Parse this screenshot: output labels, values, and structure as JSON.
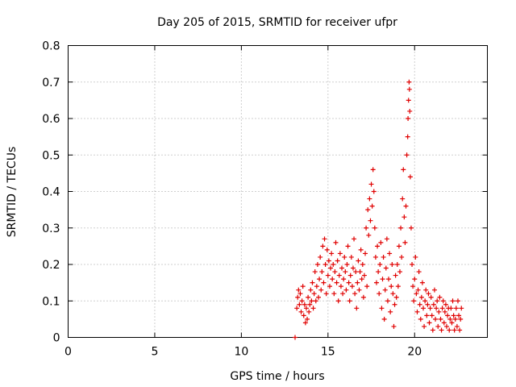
{
  "chart_data": {
    "type": "scatter",
    "title": "Day 205 of 2015, SRMTID for receiver ufpr",
    "xlabel": "GPS time / hours",
    "ylabel": "SRMTID / TECUs",
    "xlim": [
      0,
      24.2
    ],
    "ylim": [
      0,
      0.8
    ],
    "x_ticks": [
      0,
      5,
      10,
      15,
      20
    ],
    "y_ticks": [
      0,
      0.1,
      0.2,
      0.3,
      0.4,
      0.5,
      0.6,
      0.7,
      0.8
    ],
    "grid": true,
    "marker": "+",
    "color": "#e00000",
    "series": [
      {
        "name": "SRMTID",
        "points": [
          [
            13.1,
            0.0
          ],
          [
            13.2,
            0.08
          ],
          [
            13.25,
            0.11
          ],
          [
            13.3,
            0.13
          ],
          [
            13.35,
            0.09
          ],
          [
            13.4,
            0.12
          ],
          [
            13.45,
            0.07
          ],
          [
            13.5,
            0.1
          ],
          [
            13.55,
            0.14
          ],
          [
            13.6,
            0.06
          ],
          [
            13.65,
            0.09
          ],
          [
            13.7,
            0.04
          ],
          [
            13.75,
            0.08
          ],
          [
            13.8,
            0.05
          ],
          [
            13.85,
            0.11
          ],
          [
            13.9,
            0.07
          ],
          [
            13.95,
            0.09
          ],
          [
            14.0,
            0.13
          ],
          [
            14.05,
            0.1
          ],
          [
            14.1,
            0.15
          ],
          [
            14.15,
            0.08
          ],
          [
            14.2,
            0.12
          ],
          [
            14.25,
            0.18
          ],
          [
            14.3,
            0.1
          ],
          [
            14.35,
            0.14
          ],
          [
            14.4,
            0.2
          ],
          [
            14.45,
            0.11
          ],
          [
            14.5,
            0.16
          ],
          [
            14.55,
            0.22
          ],
          [
            14.6,
            0.13
          ],
          [
            14.65,
            0.18
          ],
          [
            14.7,
            0.25
          ],
          [
            14.75,
            0.15
          ],
          [
            14.8,
            0.27
          ],
          [
            14.85,
            0.2
          ],
          [
            14.9,
            0.12
          ],
          [
            14.95,
            0.24
          ],
          [
            15.0,
            0.17
          ],
          [
            15.05,
            0.21
          ],
          [
            15.1,
            0.14
          ],
          [
            15.15,
            0.19
          ],
          [
            15.2,
            0.23
          ],
          [
            15.25,
            0.16
          ],
          [
            15.3,
            0.2
          ],
          [
            15.35,
            0.12
          ],
          [
            15.4,
            0.18
          ],
          [
            15.45,
            0.26
          ],
          [
            15.5,
            0.15
          ],
          [
            15.55,
            0.21
          ],
          [
            15.6,
            0.1
          ],
          [
            15.65,
            0.17
          ],
          [
            15.7,
            0.23
          ],
          [
            15.75,
            0.14
          ],
          [
            15.8,
            0.19
          ],
          [
            15.85,
            0.12
          ],
          [
            15.9,
            0.16
          ],
          [
            15.95,
            0.22
          ],
          [
            16.0,
            0.18
          ],
          [
            16.05,
            0.13
          ],
          [
            16.1,
            0.2
          ],
          [
            16.15,
            0.25
          ],
          [
            16.2,
            0.15
          ],
          [
            16.25,
            0.1
          ],
          [
            16.3,
            0.17
          ],
          [
            16.35,
            0.22
          ],
          [
            16.4,
            0.14
          ],
          [
            16.45,
            0.19
          ],
          [
            16.5,
            0.27
          ],
          [
            16.55,
            0.12
          ],
          [
            16.6,
            0.18
          ],
          [
            16.65,
            0.08
          ],
          [
            16.7,
            0.15
          ],
          [
            16.75,
            0.21
          ],
          [
            16.8,
            0.13
          ],
          [
            16.85,
            0.18
          ],
          [
            16.9,
            0.24
          ],
          [
            16.95,
            0.16
          ],
          [
            17.0,
            0.2
          ],
          [
            17.05,
            0.11
          ],
          [
            17.1,
            0.17
          ],
          [
            17.15,
            0.23
          ],
          [
            17.2,
            0.3
          ],
          [
            17.25,
            0.14
          ],
          [
            17.3,
            0.35
          ],
          [
            17.35,
            0.28
          ],
          [
            17.4,
            0.38
          ],
          [
            17.45,
            0.32
          ],
          [
            17.5,
            0.42
          ],
          [
            17.55,
            0.36
          ],
          [
            17.6,
            0.46
          ],
          [
            17.65,
            0.4
          ],
          [
            17.7,
            0.3
          ],
          [
            17.75,
            0.22
          ],
          [
            17.8,
            0.15
          ],
          [
            17.85,
            0.25
          ],
          [
            17.9,
            0.18
          ],
          [
            17.95,
            0.12
          ],
          [
            18.0,
            0.2
          ],
          [
            18.05,
            0.26
          ],
          [
            18.1,
            0.08
          ],
          [
            18.15,
            0.16
          ],
          [
            18.2,
            0.22
          ],
          [
            18.25,
            0.05
          ],
          [
            18.3,
            0.13
          ],
          [
            18.35,
            0.19
          ],
          [
            18.4,
            0.27
          ],
          [
            18.45,
            0.1
          ],
          [
            18.5,
            0.16
          ],
          [
            18.55,
            0.23
          ],
          [
            18.6,
            0.07
          ],
          [
            18.65,
            0.14
          ],
          [
            18.7,
            0.2
          ],
          [
            18.75,
            0.12
          ],
          [
            18.8,
            0.03
          ],
          [
            18.85,
            0.09
          ],
          [
            18.9,
            0.17
          ],
          [
            18.95,
            0.11
          ],
          [
            19.0,
            0.2
          ],
          [
            19.05,
            0.14
          ],
          [
            19.1,
            0.25
          ],
          [
            19.15,
            0.18
          ],
          [
            19.2,
            0.3
          ],
          [
            19.25,
            0.22
          ],
          [
            19.3,
            0.38
          ],
          [
            19.35,
            0.46
          ],
          [
            19.4,
            0.33
          ],
          [
            19.45,
            0.26
          ],
          [
            19.5,
            0.36
          ],
          [
            19.55,
            0.5
          ],
          [
            19.6,
            0.55
          ],
          [
            19.62,
            0.6
          ],
          [
            19.65,
            0.65
          ],
          [
            19.68,
            0.7
          ],
          [
            19.7,
            0.68
          ],
          [
            19.72,
            0.62
          ],
          [
            19.75,
            0.44
          ],
          [
            19.8,
            0.3
          ],
          [
            19.85,
            0.2
          ],
          [
            19.9,
            0.14
          ],
          [
            19.95,
            0.1
          ],
          [
            20.0,
            0.16
          ],
          [
            20.05,
            0.22
          ],
          [
            20.1,
            0.12
          ],
          [
            20.15,
            0.07
          ],
          [
            20.2,
            0.13
          ],
          [
            20.25,
            0.18
          ],
          [
            20.3,
            0.09
          ],
          [
            20.35,
            0.05
          ],
          [
            20.4,
            0.11
          ],
          [
            20.45,
            0.15
          ],
          [
            20.5,
            0.08
          ],
          [
            20.55,
            0.03
          ],
          [
            20.6,
            0.1
          ],
          [
            20.65,
            0.13
          ],
          [
            20.7,
            0.06
          ],
          [
            20.75,
            0.09
          ],
          [
            20.8,
            0.12
          ],
          [
            20.85,
            0.04
          ],
          [
            20.9,
            0.08
          ],
          [
            20.95,
            0.11
          ],
          [
            21.0,
            0.06
          ],
          [
            21.05,
            0.02
          ],
          [
            21.1,
            0.09
          ],
          [
            21.15,
            0.13
          ],
          [
            21.2,
            0.05
          ],
          [
            21.25,
            0.08
          ],
          [
            21.3,
            0.1
          ],
          [
            21.35,
            0.03
          ],
          [
            21.4,
            0.07
          ],
          [
            21.45,
            0.11
          ],
          [
            21.5,
            0.05
          ],
          [
            21.55,
            0.02
          ],
          [
            21.6,
            0.08
          ],
          [
            21.65,
            0.1
          ],
          [
            21.7,
            0.04
          ],
          [
            21.75,
            0.07
          ],
          [
            21.8,
            0.09
          ],
          [
            21.85,
            0.03
          ],
          [
            21.9,
            0.06
          ],
          [
            21.95,
            0.08
          ],
          [
            22.0,
            0.02
          ],
          [
            22.05,
            0.05
          ],
          [
            22.1,
            0.08
          ],
          [
            22.15,
            0.04
          ],
          [
            22.2,
            0.1
          ],
          [
            22.25,
            0.06
          ],
          [
            22.3,
            0.02
          ],
          [
            22.35,
            0.05
          ],
          [
            22.4,
            0.08
          ],
          [
            22.45,
            0.03
          ],
          [
            22.5,
            0.1
          ],
          [
            22.55,
            0.06
          ],
          [
            22.6,
            0.02
          ],
          [
            22.65,
            0.05
          ],
          [
            22.7,
            0.08
          ]
        ]
      }
    ]
  }
}
